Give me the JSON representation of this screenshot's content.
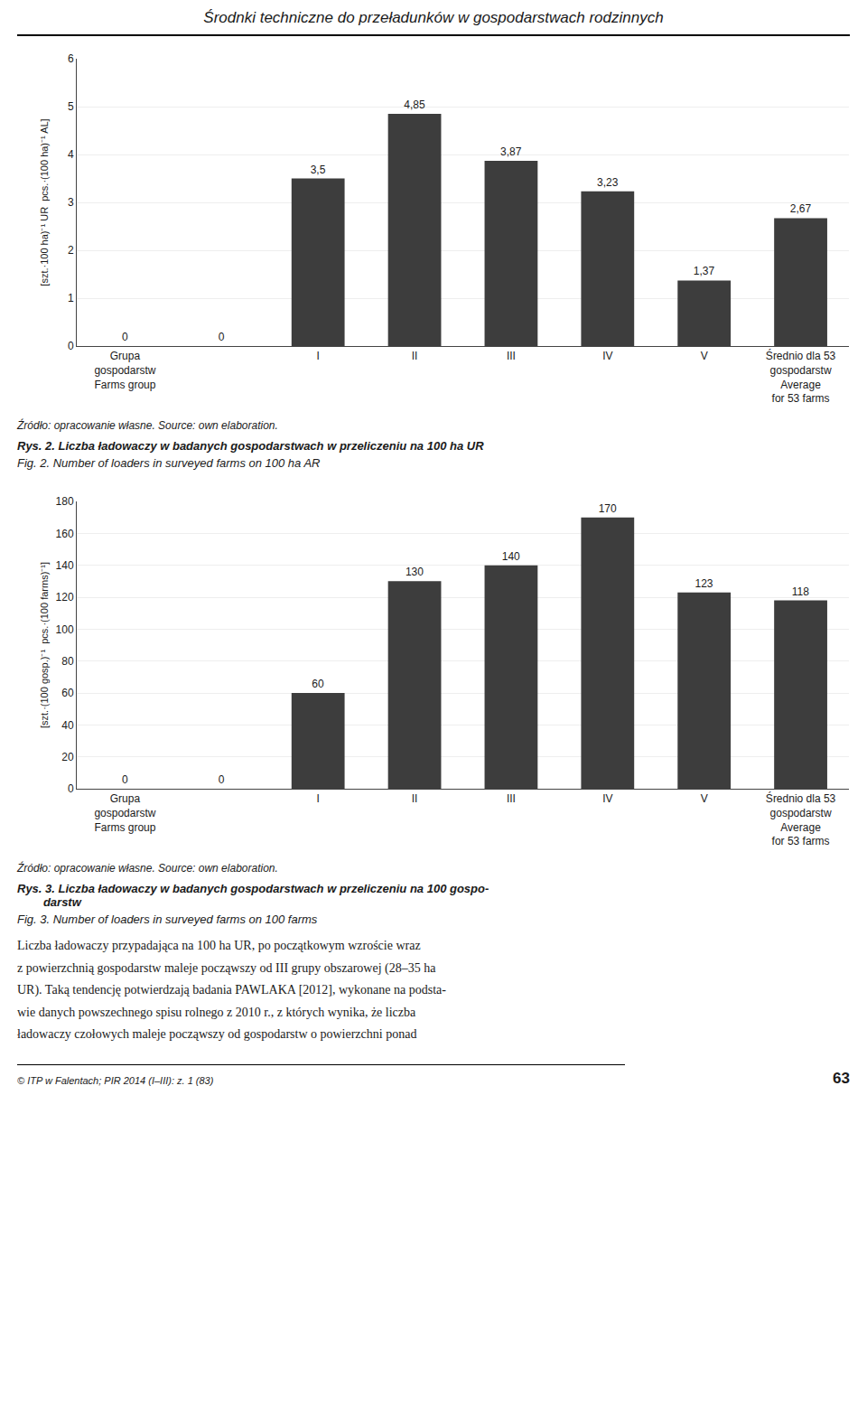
{
  "title": "Środnki techniczne do przeładunków w gospodarstwach rodzinnych",
  "chart_data": [
    {
      "type": "bar",
      "categories": [
        "Grupa\ngospodarstw\nFarms group",
        null,
        "I",
        "II",
        "III",
        "IV",
        "V",
        "Średnio dla 53\ngospodarstw\nAverage\nfor 53 farms"
      ],
      "values": [
        0,
        0,
        3.5,
        4.85,
        3.87,
        3.23,
        1.37,
        2.67
      ],
      "value_labels": [
        "0",
        "0",
        "3,5",
        "4,85",
        "3,87",
        "3,23",
        "1,37",
        "2,67"
      ],
      "data_labels": true,
      "ylabel": "[szt.·100 ha)⁻¹ UR  pcs.·(100 ha)⁻¹ AL]",
      "ylim": [
        0,
        6
      ],
      "yticks": [
        0,
        1,
        2,
        3,
        4,
        5,
        6
      ],
      "color": "#3d3d3d",
      "grid": true,
      "annotations": [
        "Źródło: opracowanie własne.  Source: own elaboration.",
        "Rys. 2. Liczba ładowaczy w badanych gospodarstwach w przeliczeniu na 100 ha UR",
        "Fig. 2. Number of loaders in surveyed farms on 100 ha AR"
      ]
    },
    {
      "type": "bar",
      "categories": [
        "Grupa\ngospodarstw\nFarms group",
        null,
        "I",
        "II",
        "III",
        "IV",
        "V",
        "Średnio dla 53\ngospodarstw\nAverage\nfor 53 farms"
      ],
      "values": [
        0,
        0,
        60,
        130,
        140,
        170,
        123,
        118
      ],
      "data_labels": true,
      "ylabel": "[szt.·(100 gosp.)⁻¹  pcs.·(100 farms)⁻¹]",
      "ylim": [
        0,
        180
      ],
      "yticks": [
        0,
        20,
        40,
        60,
        80,
        100,
        120,
        140,
        160,
        180
      ],
      "color": "#3d3d3d",
      "grid": true,
      "annotations": [
        "Źródło: opracowanie własne.  Source: own elaboration.",
        "Rys. 3. Liczba ładowaczy w badanych gospodarstwach w przeliczeniu na 100 gospo-\n        darstw",
        "Fig. 3. Number of loaders in surveyed farms on 100 farms"
      ]
    }
  ],
  "body_text": "Liczba ładowaczy przypadająca na 100 ha UR, po początkowym wzroście wraz\nz powierzchnią gospodarstw maleje począwszy od III grupy obszarowej (28–35 ha\nUR). Taką tendencję potwierdzają badania PAWLAKA [2012], wykonane na podsta-\nwie danych powszechnego spisu rolnego z 2010 r., z których wynika, że liczba\nładowaczy czołowych maleje począwszy od gospodarstw o powierzchni ponad",
  "footer_left": "© ITP w Falentach; PIR 2014 (I–III): z. 1 (83)",
  "footer_right": "63"
}
